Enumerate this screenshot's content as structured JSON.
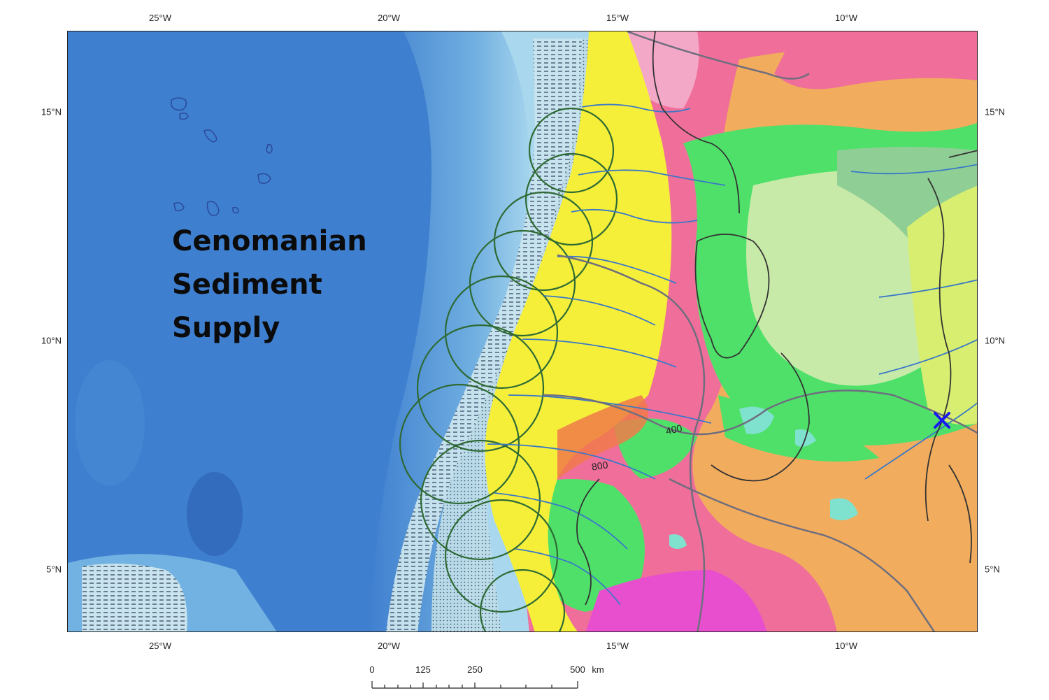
{
  "map": {
    "title_lines": [
      "Cenomanian",
      "Sediment",
      "Supply"
    ],
    "lon_labels": [
      "25°W",
      "20°W",
      "15°W",
      "10°W"
    ],
    "lat_labels": [
      "15°N",
      "10°N",
      "5°N"
    ],
    "contour_labels": [
      "400",
      "800"
    ],
    "marker": "x-marker",
    "colors": {
      "ocean_deep": "#3f7fcf",
      "ocean_shelf": "#a9d8ee",
      "sediment_yellow": "#f5ef3a",
      "green": "#4fe06a",
      "pale_green": "#c8eaa8",
      "orange": "#f2ac5e",
      "pink": "#ef6f9a",
      "magenta": "#e84fcf",
      "drainage_blue": "#3a78c8",
      "fan_green": "#2f6a34",
      "marker_blue": "#1a1aee"
    }
  },
  "scale_bar": {
    "labels": [
      "0",
      "125",
      "250",
      "500"
    ],
    "unit": "km"
  }
}
